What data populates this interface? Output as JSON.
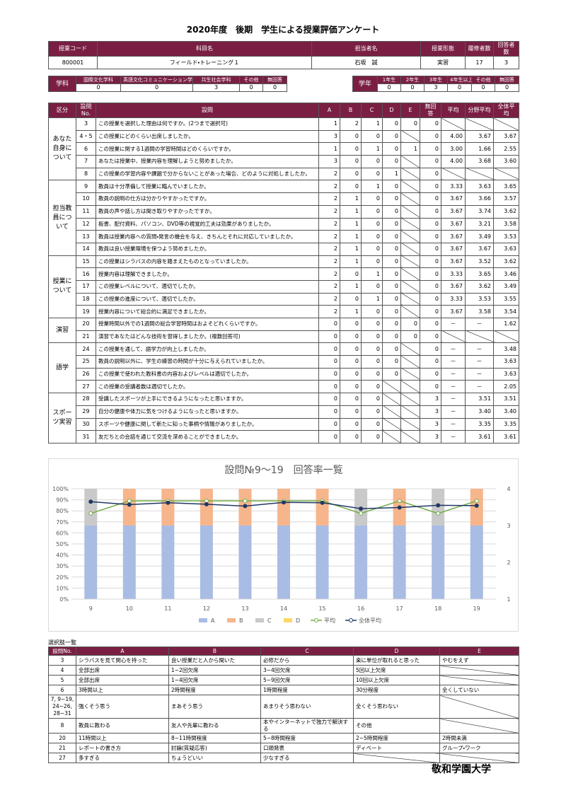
{
  "header": {
    "title": "2020年度　後期　学生による授業評価アンケート"
  },
  "course": {
    "headers": [
      "授業コード",
      "科目名",
      "担当者名",
      "授業形態",
      "履修者数",
      "回答者数"
    ],
    "values": [
      "800001",
      "フィールド・トレーニング１",
      "石坂　誠",
      "実習",
      17,
      3
    ]
  },
  "department": {
    "label": "学科",
    "headers": [
      "国際文化学科",
      "英語文化コミュニケーション学科",
      "共生社会学科",
      "その他",
      "無回答"
    ],
    "values": [
      0,
      0,
      3,
      0,
      0
    ]
  },
  "year": {
    "label": "学年",
    "headers": [
      "1年生",
      "2年生",
      "3年生",
      "4年生以上",
      "その他",
      "無回答"
    ],
    "values": [
      0,
      0,
      3,
      0,
      0,
      0
    ]
  },
  "survey": {
    "headers": [
      "区分",
      "設問No.",
      "設問",
      "A",
      "B",
      "C",
      "D",
      "E",
      "無回答",
      "平均",
      "分野平均",
      "全体平均"
    ],
    "groups": [
      {
        "label": "あなた自身について",
        "rows": [
          {
            "no": "3",
            "question": "この授業を選択した理由は何ですか。(2つまで選択可)",
            "cells": [
              1,
              2,
              1,
              0,
              0,
              0,
              null,
              null,
              null
            ]
          },
          {
            "no": "4・5",
            "question": "この授業にどのくらい出席しましたか。",
            "cells": [
              3,
              0,
              0,
              0,
              null,
              0,
              "4.00",
              "3.67",
              "3.67"
            ]
          },
          {
            "no": "6",
            "question": "この授業に関する1週間の学習時間はどのくらいですか。",
            "cells": [
              1,
              0,
              1,
              0,
              1,
              0,
              "3.00",
              "1.66",
              "2.55"
            ]
          },
          {
            "no": "7",
            "question": "あなたは授業中、授業内容を理解しようと努めましたか。",
            "cells": [
              3,
              0,
              0,
              0,
              null,
              0,
              "4.00",
              "3.68",
              "3.60"
            ]
          },
          {
            "no": "8",
            "question": "この授業の学習内容や課題で分からないことがあった場合、どのように対処しましたか。",
            "cells": [
              2,
              0,
              0,
              1,
              null,
              0,
              null,
              null,
              null
            ]
          }
        ]
      },
      {
        "label": "担当教員について",
        "rows": [
          {
            "no": "9",
            "question": "教員は十分準備して授業に臨んでいましたか。",
            "cells": [
              2,
              0,
              1,
              0,
              null,
              0,
              "3.33",
              "3.63",
              "3.65"
            ]
          },
          {
            "no": "10",
            "question": "教員の説明の仕方は分かりやすかったですか。",
            "cells": [
              2,
              1,
              0,
              0,
              null,
              0,
              "3.67",
              "3.66",
              "3.57"
            ]
          },
          {
            "no": "11",
            "question": "教員の声や話し方は聞き取りやすかったですか。",
            "cells": [
              2,
              1,
              0,
              0,
              null,
              0,
              "3.67",
              "3.74",
              "3.62"
            ]
          },
          {
            "no": "12",
            "question": "板書、配付資料、パソコン、DVD等の視覚的工夫は効果がありましたか。",
            "cells": [
              2,
              1,
              0,
              0,
              null,
              0,
              "3.67",
              "3.21",
              "3.58"
            ]
          },
          {
            "no": "13",
            "question": "教員は授業内容への質問・発言の機会を与え、きちんとそれに対応していましたか。",
            "cells": [
              2,
              1,
              0,
              0,
              null,
              0,
              "3.67",
              "3.49",
              "3.53"
            ]
          },
          {
            "no": "14",
            "question": "教員は良い授業環境を保つよう努めましたか。",
            "cells": [
              2,
              1,
              0,
              0,
              null,
              0,
              "3.67",
              "3.67",
              "3.63"
            ]
          }
        ]
      },
      {
        "label": "授業について",
        "rows": [
          {
            "no": "15",
            "question": "この授業はシラバスの内容を踏まえたものとなっていましたか。",
            "cells": [
              2,
              1,
              0,
              0,
              null,
              0,
              "3.67",
              "3.52",
              "3.62"
            ]
          },
          {
            "no": "16",
            "question": "授業内容は理解できましたか。",
            "cells": [
              2,
              0,
              1,
              0,
              null,
              0,
              "3.33",
              "3.65",
              "3.46"
            ]
          },
          {
            "no": "17",
            "question": "この授業レベルについて、適切でしたか。",
            "cells": [
              2,
              1,
              0,
              0,
              null,
              0,
              "3.67",
              "3.62",
              "3.49"
            ]
          },
          {
            "no": "18",
            "question": "この授業の進度について、適切でしたか。",
            "cells": [
              2,
              0,
              1,
              0,
              null,
              0,
              "3.33",
              "3.53",
              "3.55"
            ]
          },
          {
            "no": "19",
            "question": "授業内容について総合的に満足できましたか。",
            "cells": [
              2,
              1,
              0,
              0,
              null,
              0,
              "3.67",
              "3.58",
              "3.54"
            ]
          }
        ]
      },
      {
        "label": "演習",
        "rows": [
          {
            "no": "20",
            "question": "授業時間以外での1週間の総合学習時間はおよそどれくらいですか。",
            "cells": [
              0,
              0,
              0,
              0,
              0,
              0,
              "－",
              "－",
              "1.62"
            ]
          },
          {
            "no": "21",
            "question": "演習であなたはどんな技術を習得しましたか。(複数回答可)",
            "cells": [
              0,
              0,
              0,
              0,
              0,
              0,
              null,
              null,
              null
            ]
          }
        ]
      },
      {
        "label": "語学",
        "rows": [
          {
            "no": "24",
            "question": "この授業を通して、語学力が向上しましたか。",
            "cells": [
              0,
              0,
              0,
              0,
              null,
              0,
              "－",
              "－",
              "3.48"
            ]
          },
          {
            "no": "25",
            "question": "教員の説明以外に、学生の練習の時間が十分に与えられていましたか。",
            "cells": [
              0,
              0,
              0,
              0,
              null,
              0,
              "－",
              "－",
              "3.63"
            ]
          },
          {
            "no": "26",
            "question": "この授業で使われた教科書の内容およびレベルは適切でしたか。",
            "cells": [
              0,
              0,
              0,
              0,
              null,
              0,
              "－",
              "－",
              "3.63"
            ]
          },
          {
            "no": "27",
            "question": "この授業の受講者数は適切でしたか。",
            "cells": [
              0,
              0,
              0,
              null,
              null,
              0,
              "－",
              "－",
              "2.05"
            ]
          }
        ]
      },
      {
        "label": "スポーツ実習",
        "rows": [
          {
            "no": "28",
            "question": "受講したスポーツが上手にできるようになったと思いますか。",
            "cells": [
              0,
              0,
              0,
              null,
              null,
              3,
              "－",
              "3.51",
              "3.51"
            ]
          },
          {
            "no": "29",
            "question": "自分の健康や体力に気をつけるようになったと思いますか。",
            "cells": [
              0,
              0,
              0,
              null,
              null,
              3,
              "－",
              "3.40",
              "3.40"
            ]
          },
          {
            "no": "30",
            "question": "スポーツや健康に関して新たに知った事柄や情報がありましたか。",
            "cells": [
              0,
              0,
              0,
              null,
              null,
              3,
              "－",
              "3.35",
              "3.35"
            ]
          },
          {
            "no": "31",
            "question": "友だちとの会話を通じて交流を深めることができましたか。",
            "cells": [
              0,
              0,
              0,
              null,
              null,
              3,
              "－",
              "3.61",
              "3.61"
            ]
          }
        ]
      }
    ]
  },
  "chart_data": {
    "type": "bar",
    "title": "設問№9～19　回答率一覧",
    "categories": [
      "9",
      "10",
      "11",
      "12",
      "13",
      "14",
      "15",
      "16",
      "17",
      "18",
      "19"
    ],
    "series": [
      {
        "name": "A",
        "type": "bar",
        "color": "#a9bce4",
        "values": [
          66.7,
          66.7,
          66.7,
          66.7,
          66.7,
          66.7,
          66.7,
          66.7,
          66.7,
          66.7,
          66.7
        ]
      },
      {
        "name": "B",
        "type": "bar",
        "color": "#f7b58c",
        "values": [
          0,
          33.3,
          33.3,
          33.3,
          33.3,
          33.3,
          33.3,
          0,
          33.3,
          0,
          33.3
        ]
      },
      {
        "name": "C",
        "type": "bar",
        "color": "#c9c9c9",
        "values": [
          33.3,
          0,
          0,
          0,
          0,
          0,
          0,
          33.3,
          0,
          33.3,
          0
        ]
      },
      {
        "name": "D",
        "type": "bar",
        "color": "#ffd966",
        "values": [
          0,
          0,
          0,
          0,
          0,
          0,
          0,
          0,
          0,
          0,
          0
        ]
      },
      {
        "name": "平均",
        "type": "line",
        "axis": "y2",
        "color": "#70ad47",
        "values": [
          3.33,
          3.67,
          3.67,
          3.67,
          3.67,
          3.67,
          3.67,
          3.33,
          3.67,
          3.33,
          3.67
        ]
      },
      {
        "name": "全体平均",
        "type": "line",
        "axis": "y2",
        "color": "#203864",
        "values": [
          3.65,
          3.57,
          3.62,
          3.58,
          3.53,
          3.63,
          3.62,
          3.46,
          3.49,
          3.55,
          3.54
        ]
      }
    ],
    "ylim": [
      0,
      100
    ],
    "yticks": [
      {
        "value": 0,
        "label": "0%"
      },
      {
        "value": 10,
        "label": "10%"
      },
      {
        "value": 20,
        "label": "20%"
      },
      {
        "value": 30,
        "label": "30%"
      },
      {
        "value": 40,
        "label": "40%"
      },
      {
        "value": 50,
        "label": "50%"
      },
      {
        "value": 60,
        "label": "60%"
      },
      {
        "value": 70,
        "label": "70%"
      },
      {
        "value": 80,
        "label": "80%"
      },
      {
        "value": 90,
        "label": "90%"
      },
      {
        "value": 100,
        "label": "100%"
      }
    ],
    "y2lim": [
      1,
      4
    ],
    "y2ticks": [
      1,
      2,
      3,
      4
    ],
    "grid": true,
    "legend": "bottom"
  },
  "choices": {
    "label": "選択肢一覧",
    "headers": [
      "設問No.",
      "A",
      "B",
      "C",
      "D",
      "E"
    ],
    "rows": [
      [
        "3",
        "シラバスを見て関心を持った",
        "良い授業だと人から聞いた",
        "必修だから",
        "楽に単位が取れると思った",
        "やむをえず"
      ],
      [
        "4",
        "全部出席",
        "1~2回欠席",
        "3~4回欠席",
        "5回以上欠席",
        null
      ],
      [
        "5",
        "全部出席",
        "1~4回欠席",
        "5~9回欠席",
        "10回以上欠席",
        null
      ],
      [
        "6",
        "3時間以上",
        "2時間程度",
        "1時間程度",
        "30分程度",
        "全くしていない"
      ],
      [
        "7, 9~19, 24~26, 28~31",
        "強くそう思う",
        "まあそう思う",
        "あまりそう思わない",
        "全くそう思わない",
        null
      ],
      [
        "8",
        "教員に教わる",
        "友人や先輩に教わる",
        "本やインターネットで独力で解決する",
        "その他",
        null
      ],
      [
        "20",
        "11時間以上",
        "8~11時間程度",
        "5~8時間程度",
        "2~5時間程度",
        "2時間未満"
      ],
      [
        "21",
        "レポートの書き方",
        "討論(質疑応答)",
        "口頭発表",
        "ディベート",
        "グループ・ワーク"
      ],
      [
        "27",
        "多すぎる",
        "ちょうどいい",
        "少なすぎる",
        null,
        null
      ]
    ]
  },
  "footer": {
    "text": "敬和学園大学"
  }
}
